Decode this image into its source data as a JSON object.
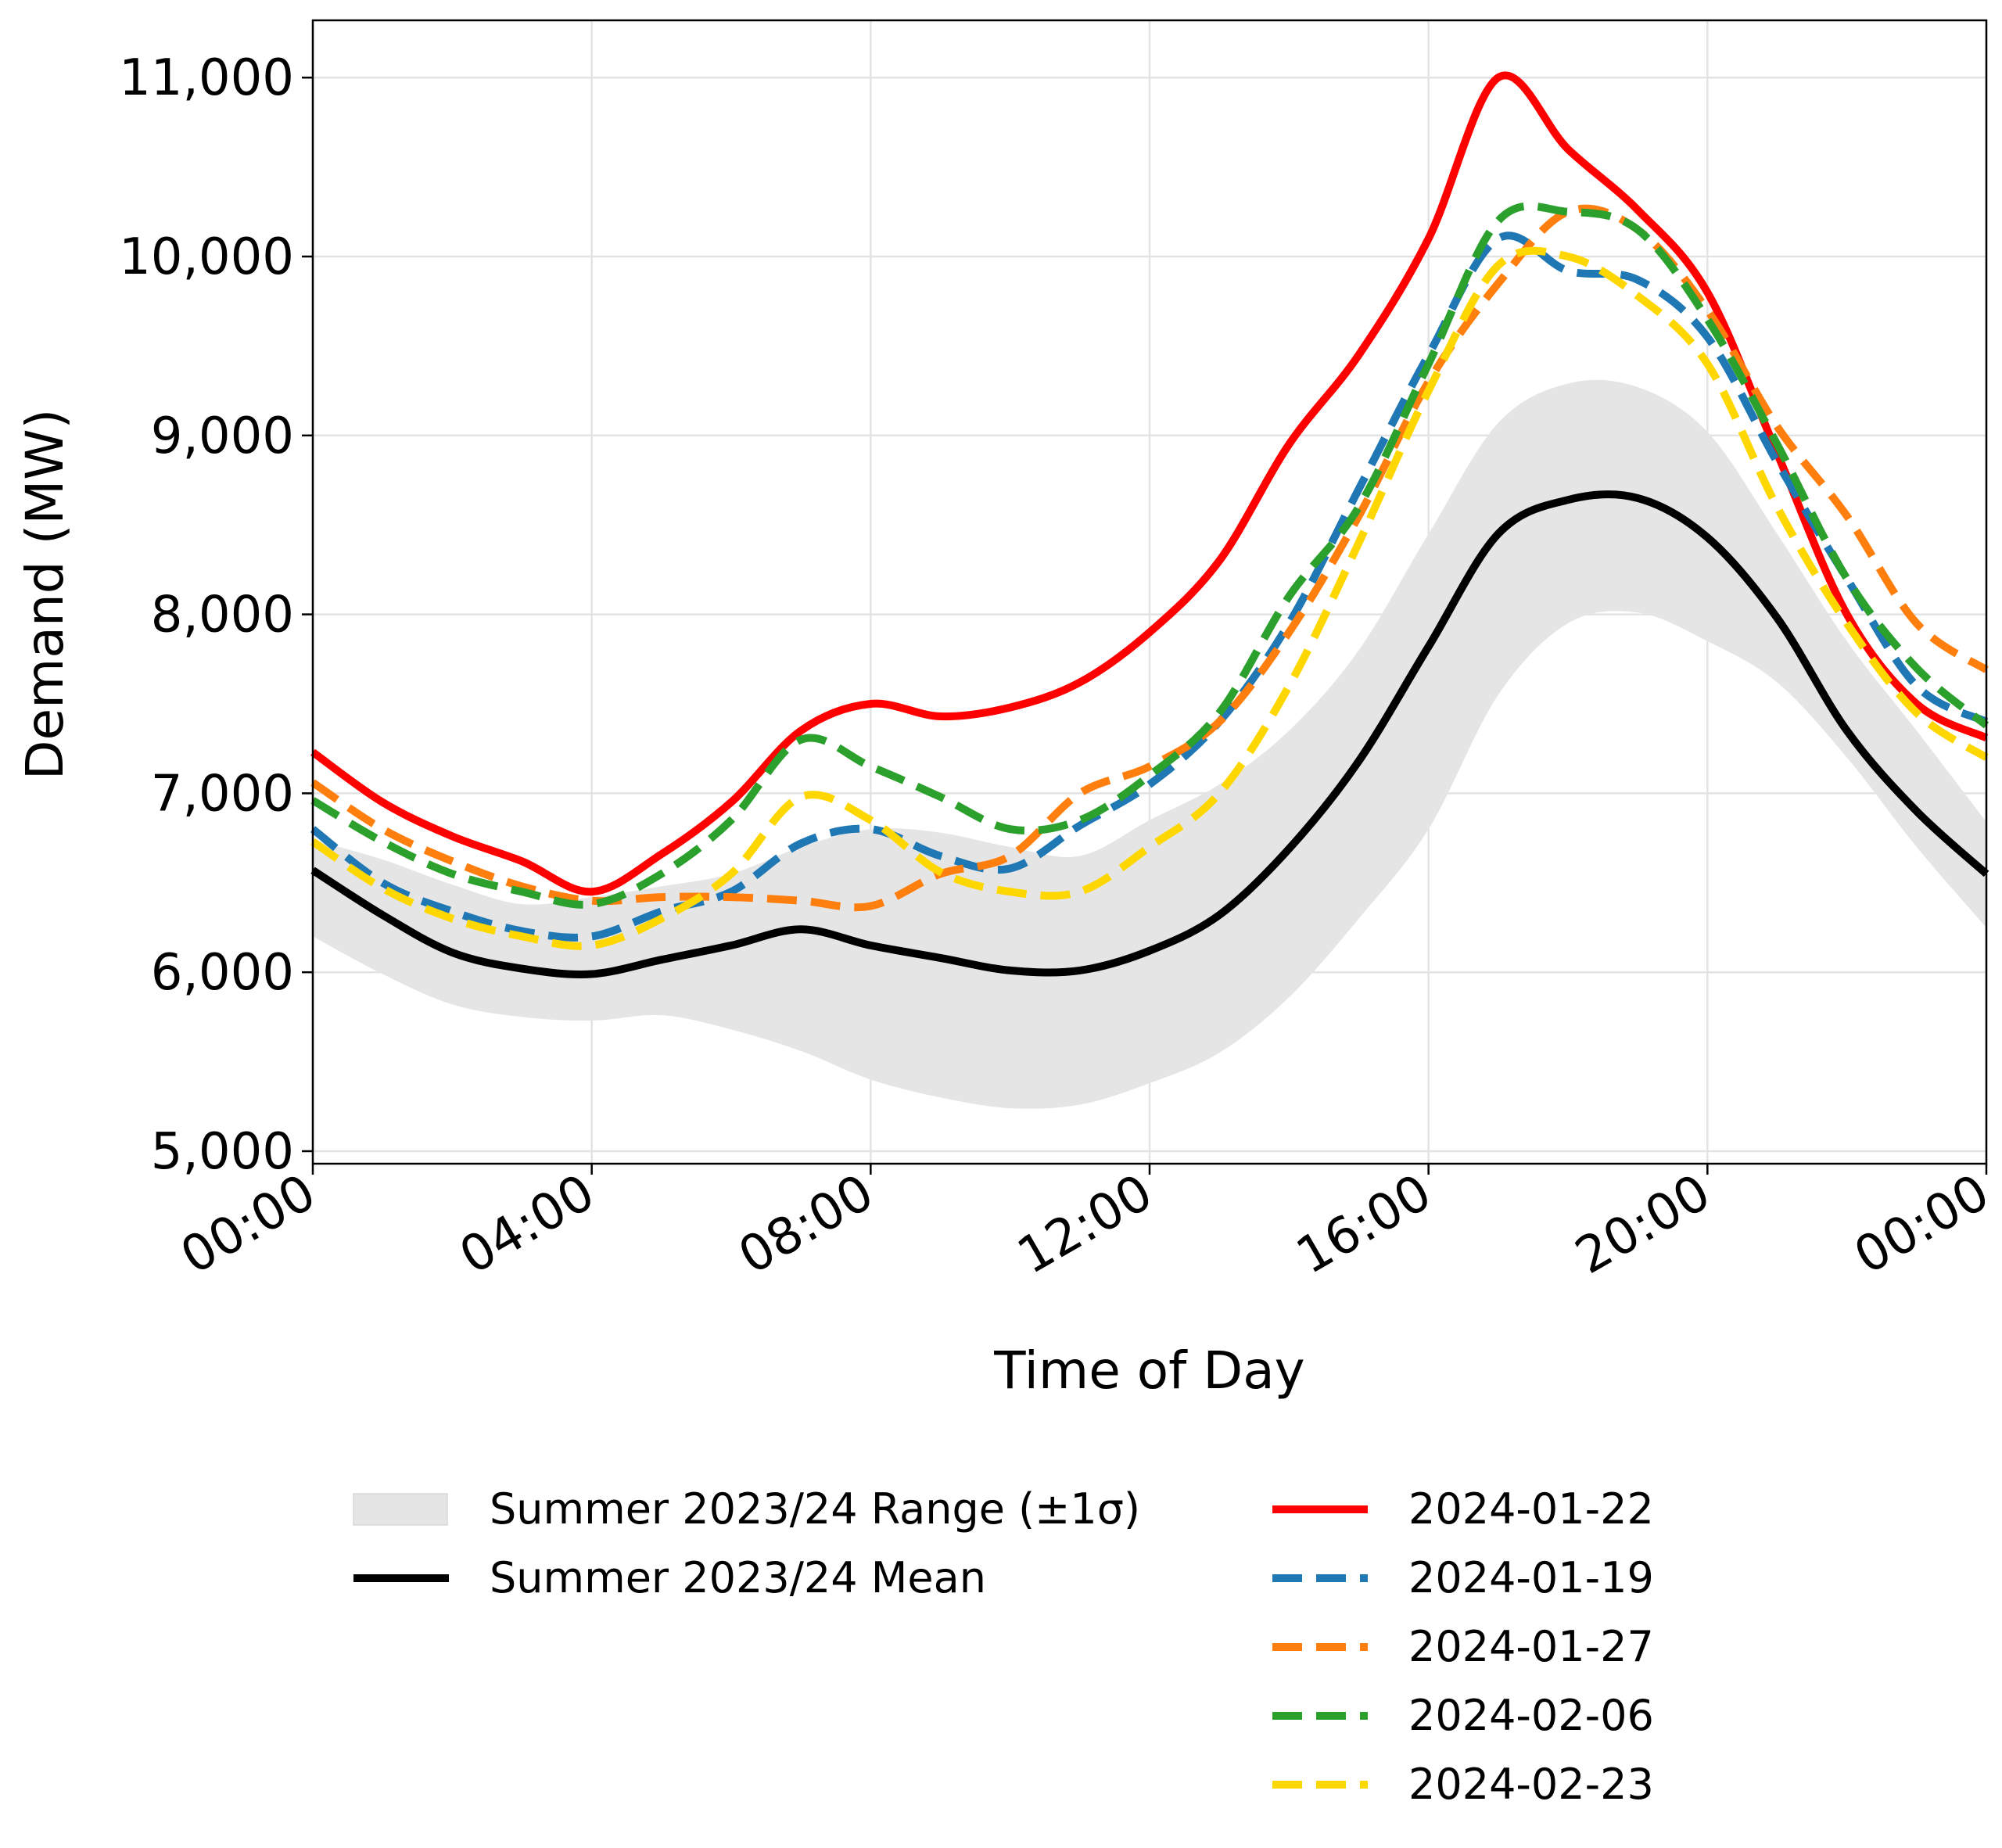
{
  "chart_data": {
    "type": "line",
    "title": "",
    "xlabel": "Time of Day",
    "ylabel": "Demand (MW)",
    "xlim": [
      0,
      24
    ],
    "ylim": [
      4930,
      11320
    ],
    "grid": true,
    "legend_position": "bottom",
    "x_ticks": [
      {
        "value": 0,
        "label": "00:00"
      },
      {
        "value": 4,
        "label": "04:00"
      },
      {
        "value": 8,
        "label": "08:00"
      },
      {
        "value": 12,
        "label": "12:00"
      },
      {
        "value": 16,
        "label": "16:00"
      },
      {
        "value": 20,
        "label": "20:00"
      },
      {
        "value": 24,
        "label": "00:00"
      }
    ],
    "y_ticks": [
      {
        "value": 5000,
        "label": "5,000"
      },
      {
        "value": 6000,
        "label": "6,000"
      },
      {
        "value": 7000,
        "label": "7,000"
      },
      {
        "value": 8000,
        "label": "8,000"
      },
      {
        "value": 9000,
        "label": "9,000"
      },
      {
        "value": 10000,
        "label": "10,000"
      },
      {
        "value": 11000,
        "label": "11,000"
      }
    ],
    "x": [
      0,
      1,
      2,
      3,
      4,
      5,
      6,
      7,
      8,
      9,
      10,
      11,
      12,
      13,
      14,
      15,
      16,
      17,
      18,
      19,
      20,
      21,
      22,
      23,
      24
    ],
    "band": {
      "name": "Summer 2023/24 Range (±1σ)",
      "color": "#e5e5e5",
      "lower": [
        6200,
        5990,
        5820,
        5750,
        5730,
        5760,
        5680,
        5560,
        5400,
        5300,
        5240,
        5260,
        5380,
        5550,
        5860,
        6300,
        6800,
        7550,
        7950,
        8010,
        7850,
        7620,
        7200,
        6700,
        6250
      ],
      "upper": [
        6740,
        6630,
        6490,
        6380,
        6420,
        6480,
        6550,
        6700,
        6800,
        6780,
        6700,
        6650,
        6850,
        7050,
        7350,
        7800,
        8450,
        9070,
        9290,
        9270,
        9020,
        8450,
        7850,
        7350,
        6840
      ]
    },
    "series": [
      {
        "name": "Summer 2023/24 Mean",
        "color": "#000000",
        "dash": "solid",
        "values": [
          6570,
          6320,
          6110,
          6020,
          5990,
          6070,
          6150,
          6240,
          6150,
          6080,
          6010,
          6010,
          6120,
          6320,
          6690,
          7180,
          7820,
          8450,
          8640,
          8650,
          8430,
          7980,
          7350,
          6900,
          6550
        ]
      },
      {
        "name": "2024-01-22",
        "color": "#ff0000",
        "dash": "solid",
        "values": [
          7230,
          6950,
          6760,
          6620,
          6450,
          6660,
          6950,
          7350,
          7500,
          7430,
          7480,
          7620,
          7900,
          8300,
          8950,
          9450,
          10100,
          11000,
          10600,
          10260,
          9800,
          8900,
          8000,
          7500,
          7310
        ]
      },
      {
        "name": "2024-01-19",
        "color": "#1f77b4",
        "dash": "dashed",
        "values": [
          6800,
          6500,
          6340,
          6230,
          6200,
          6340,
          6450,
          6720,
          6800,
          6650,
          6580,
          6820,
          7050,
          7400,
          7950,
          8700,
          9450,
          10100,
          9920,
          9870,
          9550,
          8850,
          8200,
          7600,
          7400
        ]
      },
      {
        "name": "2024-01-27",
        "color": "#ff7f0e",
        "dash": "dashed",
        "values": [
          7060,
          6800,
          6620,
          6480,
          6400,
          6420,
          6420,
          6400,
          6370,
          6550,
          6650,
          7000,
          7150,
          7400,
          7900,
          8550,
          9300,
          9850,
          10250,
          10150,
          9700,
          9050,
          8550,
          7950,
          7690
        ]
      },
      {
        "name": "2024-02-06",
        "color": "#2ca02c",
        "dash": "dashed",
        "values": [
          6960,
          6730,
          6550,
          6450,
          6380,
          6550,
          6850,
          7300,
          7150,
          6980,
          6800,
          6850,
          7100,
          7450,
          8100,
          8600,
          9400,
          10200,
          10250,
          10150,
          9650,
          8950,
          8200,
          7700,
          7380
        ]
      },
      {
        "name": "2024-02-23",
        "color": "#ffd700",
        "dash": "dashed",
        "values": [
          6730,
          6470,
          6300,
          6200,
          6150,
          6300,
          6550,
          6980,
          6850,
          6560,
          6450,
          6450,
          6700,
          7000,
          7600,
          8400,
          9250,
          9950,
          10000,
          9780,
          9400,
          8600,
          7950,
          7450,
          7200
        ]
      }
    ],
    "legend_entries": [
      {
        "label": "Summer 2023/24 Range (±1σ)",
        "kind": "band",
        "color": "#e5e5e5"
      },
      {
        "label": "Summer 2023/24 Mean",
        "kind": "line",
        "color": "#000000",
        "dash": "solid"
      },
      {
        "label": "2024-01-22",
        "kind": "line",
        "color": "#ff0000",
        "dash": "solid"
      },
      {
        "label": "2024-01-19",
        "kind": "line",
        "color": "#1f77b4",
        "dash": "dashed"
      },
      {
        "label": "2024-01-27",
        "kind": "line",
        "color": "#ff7f0e",
        "dash": "dashed"
      },
      {
        "label": "2024-02-06",
        "kind": "line",
        "color": "#2ca02c",
        "dash": "dashed"
      },
      {
        "label": "2024-02-23",
        "kind": "line",
        "color": "#ffd700",
        "dash": "dashed"
      }
    ]
  }
}
